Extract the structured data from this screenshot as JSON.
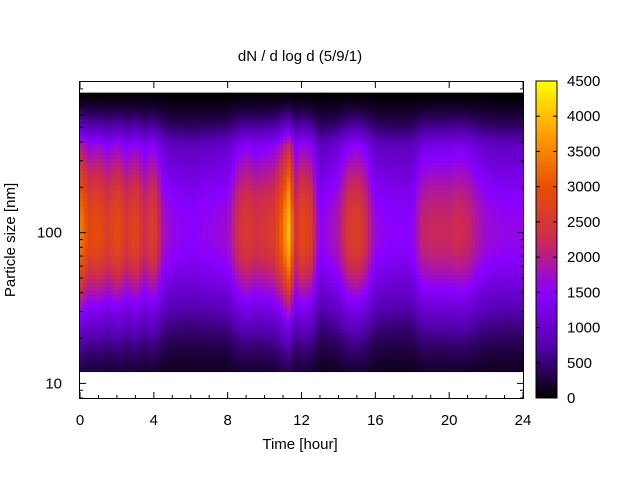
{
  "chart_data": {
    "type": "heatmap",
    "title": "dN / d log d (5/9/1)",
    "xlabel": "Time [hour]",
    "ylabel": "Particle size [nm]",
    "xlim": [
      0,
      24
    ],
    "ylim": [
      8,
      1000
    ],
    "y_scale": "log",
    "x_ticks": [
      0,
      4,
      8,
      12,
      16,
      20,
      24
    ],
    "x_tick_labels": [
      "0",
      "4",
      "8",
      "12",
      "16",
      "20",
      "24"
    ],
    "y_ticks": [
      10,
      100
    ],
    "y_tick_labels": [
      "10",
      "100"
    ],
    "colorbar": {
      "min": 0,
      "max": 4500,
      "ticks": [
        0,
        500,
        1000,
        1500,
        2000,
        2500,
        3000,
        3500,
        4000,
        4500
      ],
      "tick_labels": [
        "0",
        "500",
        "1000",
        "1500",
        "2000",
        "2500",
        "3000",
        "3500",
        "4000",
        "4500"
      ],
      "palette": "black-purple-red-orange-yellow",
      "colors": [
        "#000000",
        "#5500b0",
        "#8a00ff",
        "#cc2a50",
        "#e85000",
        "#ffa000",
        "#ffff00"
      ]
    },
    "size_range_nm": [
      12,
      850
    ],
    "peak_diameter_nm": 100,
    "time_profile": {
      "time_hour": [
        0,
        0.5,
        1,
        1.5,
        2,
        2.5,
        3,
        3.5,
        4,
        4.5,
        5,
        6,
        7,
        8,
        8.5,
        9,
        9.5,
        10,
        10.5,
        11,
        11.3,
        11.7,
        12,
        12.5,
        13,
        14,
        14.5,
        15,
        15.5,
        16,
        17,
        18,
        18.5,
        19,
        20,
        20.5,
        21,
        21.5,
        22,
        23,
        24
      ],
      "peak_value": [
        3500,
        2800,
        2950,
        2600,
        2950,
        2500,
        2800,
        2300,
        2700,
        1800,
        1600,
        1500,
        1600,
        1700,
        2300,
        2600,
        2400,
        2500,
        2600,
        3300,
        4000,
        2400,
        2900,
        2600,
        1500,
        1900,
        2500,
        2700,
        2300,
        1600,
        1500,
        1500,
        2100,
        2200,
        2200,
        2300,
        2200,
        1900,
        1700,
        1600,
        1600
      ]
    }
  }
}
